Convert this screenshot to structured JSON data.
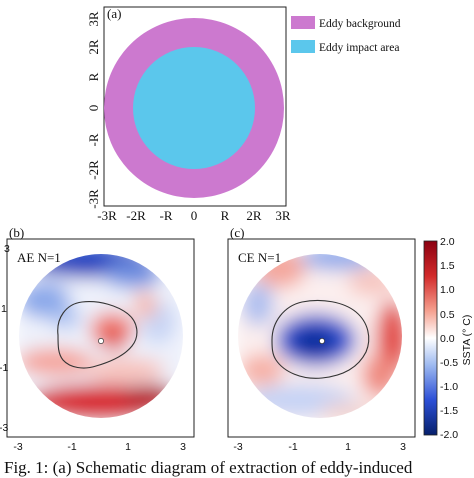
{
  "panel_a": {
    "label": "(a)",
    "x_ticks": [
      "-3R",
      "-2R",
      "-R",
      "0",
      "R",
      "2R",
      "3R"
    ],
    "y_ticks": [
      "3R",
      "2R",
      "R",
      "0",
      "-R",
      "-2R",
      "-3R"
    ],
    "legend": [
      {
        "label": "Eddy background",
        "color": "#cc79cf"
      },
      {
        "label": "Eddy impact area",
        "color": "#5bc7ec"
      }
    ],
    "outer_radius_R": 2.7,
    "inner_radius_R": 1.9
  },
  "panel_b": {
    "label": "(b)",
    "title": "AE N=1",
    "x_ticks": [
      "-3",
      "-1",
      "1",
      "3"
    ],
    "y_ticks": [
      "3",
      "1",
      "-1",
      "-3"
    ]
  },
  "panel_c": {
    "label": "(c)",
    "title": "CE N=1",
    "x_ticks": [
      "-3",
      "-1",
      "1",
      "3"
    ]
  },
  "colorbar": {
    "label": "SSTA (° C)",
    "ticks": [
      "2.0",
      "1.5",
      "1.0",
      "0.5",
      "0.0",
      "-0.5",
      "-1.0",
      "-1.5",
      "-2.0"
    ],
    "range": [
      -2.0,
      2.0
    ],
    "colors": {
      "max": "#8b0010",
      "zero": "#ffffff",
      "min": "#06206b"
    }
  },
  "caption": "Fig. 1: (a) Schematic diagram of extraction of eddy-induced"
}
